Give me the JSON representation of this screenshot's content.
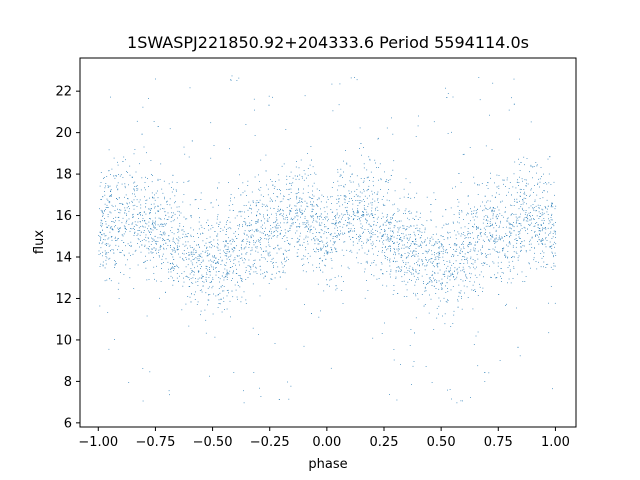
{
  "chart_data": {
    "type": "scatter",
    "title": "1SWASPJ221850.92+204333.6 Period 5594114.0s",
    "xlabel": "phase",
    "ylabel": "flux",
    "xlim": [
      -1.08,
      1.09
    ],
    "ylim": [
      5.8,
      23.6
    ],
    "xticks": [
      -1.0,
      -0.75,
      -0.5,
      -0.25,
      0.0,
      0.25,
      0.5,
      0.75,
      1.0
    ],
    "xtick_labels": [
      "−1.00",
      "−0.75",
      "−0.50",
      "−0.25",
      "0.00",
      "0.25",
      "0.50",
      "0.75",
      "1.00"
    ],
    "yticks": [
      6,
      8,
      10,
      12,
      14,
      16,
      18,
      20,
      22
    ],
    "ytick_labels": [
      "6",
      "8",
      "10",
      "12",
      "14",
      "16",
      "18",
      "20",
      "22"
    ],
    "grid": false,
    "marker_color": "#1f77b4",
    "series": [
      {
        "phase": [
          -1.0,
          -0.95,
          -0.9,
          -0.85,
          -0.8,
          -0.75,
          -0.7,
          -0.65,
          -0.6,
          -0.55,
          -0.5,
          -0.45,
          -0.4,
          -0.35,
          -0.3,
          -0.25,
          -0.2,
          -0.15,
          -0.1,
          -0.05,
          0.0,
          0.05,
          0.1,
          0.15,
          0.2,
          0.25,
          0.3,
          0.35,
          0.4,
          0.45,
          0.5,
          0.55,
          0.6,
          0.65,
          0.7,
          0.75,
          0.8,
          0.85,
          0.9,
          0.95,
          1.0
        ],
        "flux_mean": [
          15.0,
          15.5,
          15.8,
          15.9,
          15.5,
          15.2,
          14.8,
          14.5,
          14.0,
          13.6,
          13.5,
          13.8,
          14.0,
          14.6,
          15.2,
          15.0,
          15.4,
          15.7,
          15.8,
          15.6,
          15.0,
          15.5,
          15.8,
          15.9,
          15.5,
          15.2,
          14.8,
          14.5,
          14.0,
          13.6,
          13.5,
          13.8,
          14.0,
          14.6,
          15.2,
          15.0,
          15.4,
          15.7,
          15.8,
          15.6,
          15.0
        ]
      }
    ]
  }
}
